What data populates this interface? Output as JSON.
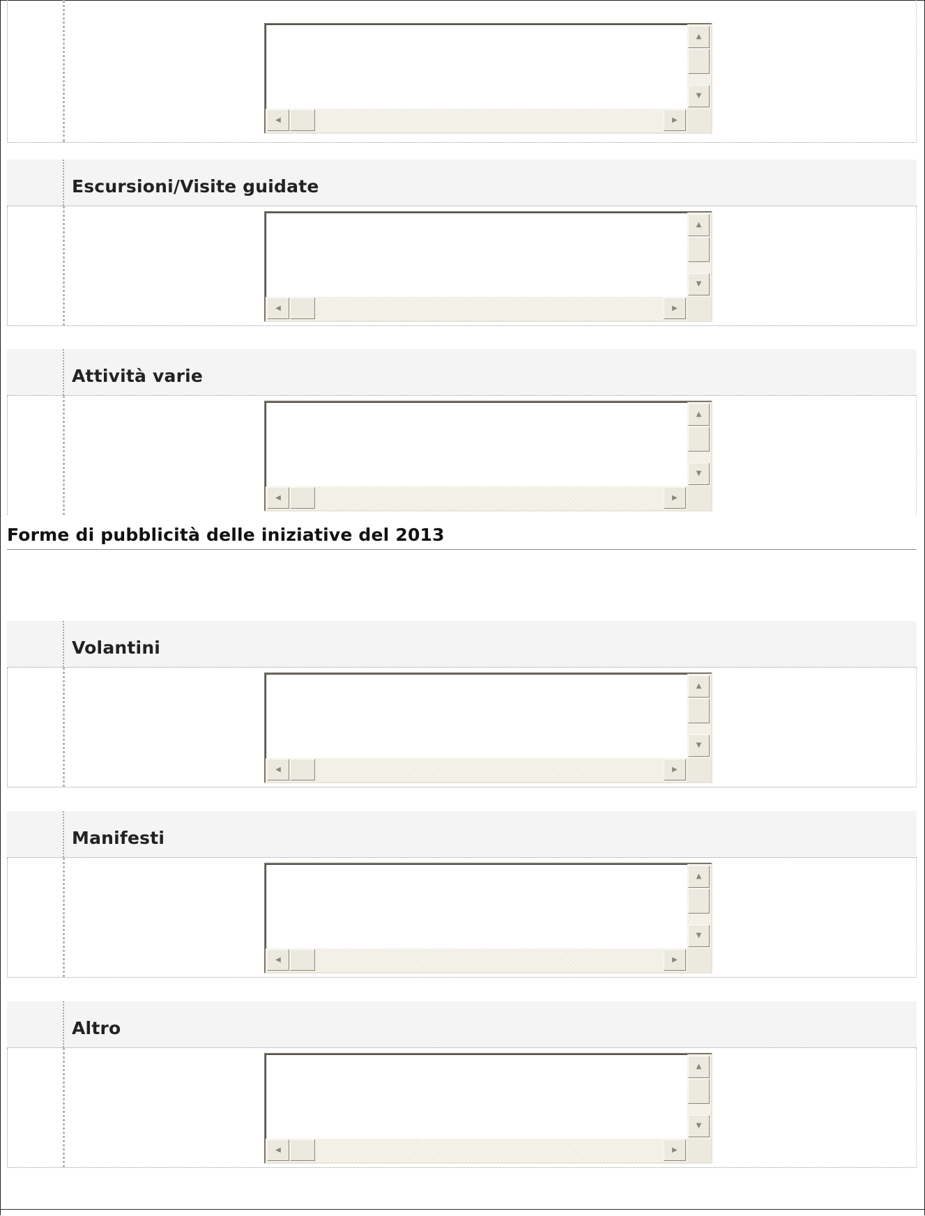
{
  "blocks": [
    {
      "label": ""
    },
    {
      "label": "Escursioni/Visite guidate"
    },
    {
      "label": "Attività varie"
    },
    {
      "label": "Volantini"
    },
    {
      "label": "Manifesti"
    },
    {
      "label": "Altro"
    }
  ],
  "section": {
    "title": "Forme di pubblicità delle iniziative del 2013"
  },
  "scroll_glyphs": {
    "up": "▲",
    "down": "▼",
    "left": "◀",
    "right": "▶"
  }
}
